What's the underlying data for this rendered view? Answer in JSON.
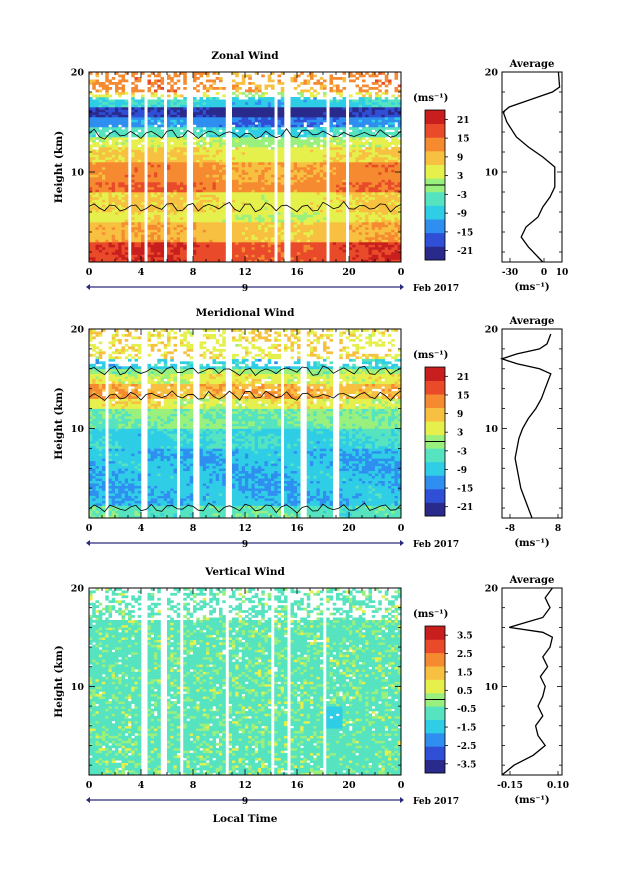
{
  "figure": {
    "xlabel": "Local Time",
    "date_label": "Feb 2017",
    "day_label": "9",
    "colors": {
      "background": "#ffffff",
      "axis": "#000000",
      "scale": [
        "#2a2a8c",
        "#2f4fd6",
        "#2f8ff0",
        "#2fcde6",
        "#56e3c0",
        "#9af07c",
        "#e6f04c",
        "#f7c040",
        "#f58a30",
        "#e84a2a",
        "#c81e1e"
      ]
    }
  },
  "chart_data": [
    {
      "type": "heatmap",
      "id": "zonal",
      "title": "Zonal Wind",
      "ylabel": "Height (km)",
      "unit": "(ms⁻¹)",
      "xlim": [
        0,
        24
      ],
      "ylim": [
        1,
        20
      ],
      "x_ticks": [
        "0",
        "4",
        "8",
        "12",
        "16",
        "20",
        "0"
      ],
      "y_ticks": [
        "10",
        "20"
      ],
      "colorbar": {
        "min": -24,
        "max": 24,
        "ticks": [
          "21",
          "15",
          "9",
          "3",
          "-3",
          "-9",
          "-15",
          "-21"
        ]
      },
      "profile": {
        "title": "Average",
        "xlabel": "(ms⁻¹)",
        "xlim": [
          -13,
          12
        ],
        "x_ticks": [
          "-30",
          "0",
          "10"
        ],
        "y_ticks": [
          "10",
          "20"
        ],
        "points": [
          [
            4,
            1
          ],
          [
            2,
            1.5
          ],
          [
            -2,
            2.5
          ],
          [
            -5,
            3.5
          ],
          [
            -3,
            4.5
          ],
          [
            2,
            5.5
          ],
          [
            4,
            6.5
          ],
          [
            7,
            7.5
          ],
          [
            9,
            8.5
          ],
          [
            9,
            9.5
          ],
          [
            9,
            10.5
          ],
          [
            4,
            11.5
          ],
          [
            -2,
            12.5
          ],
          [
            -7,
            13.5
          ],
          [
            -11,
            15
          ],
          [
            -12.5,
            16
          ],
          [
            -10,
            16.5
          ],
          [
            -4,
            17
          ],
          [
            2,
            17.5
          ],
          [
            8,
            18
          ],
          [
            11,
            18.5
          ],
          [
            10.5,
            20
          ]
        ]
      }
    },
    {
      "type": "heatmap",
      "id": "meridional",
      "title": "Meridional Wind",
      "ylabel": "Height (km)",
      "unit": "(ms⁻¹)",
      "xlim": [
        0,
        24
      ],
      "ylim": [
        1,
        20
      ],
      "x_ticks": [
        "0",
        "4",
        "8",
        "12",
        "16",
        "20",
        "0"
      ],
      "y_ticks": [
        "10",
        "20"
      ],
      "colorbar": {
        "min": -24,
        "max": 24,
        "ticks": [
          "21",
          "15",
          "9",
          "3",
          "-3",
          "-9",
          "-15",
          "-21"
        ]
      },
      "profile": {
        "title": "Average",
        "xlabel": "(ms⁻¹)",
        "xlim": [
          -8,
          8
        ],
        "x_ticks": [
          "-8",
          "8"
        ],
        "y_ticks": [
          "10",
          "20"
        ],
        "points": [
          [
            0,
            1
          ],
          [
            -1,
            2
          ],
          [
            -2,
            3
          ],
          [
            -3,
            4
          ],
          [
            -3.5,
            5
          ],
          [
            -4,
            6
          ],
          [
            -4.5,
            7
          ],
          [
            -4,
            8
          ],
          [
            -3.5,
            9
          ],
          [
            -2.5,
            10
          ],
          [
            -1,
            11
          ],
          [
            1,
            12
          ],
          [
            2.5,
            13
          ],
          [
            3.5,
            14
          ],
          [
            4.5,
            15
          ],
          [
            5,
            15.5
          ],
          [
            2,
            16
          ],
          [
            -4,
            16.5
          ],
          [
            -8,
            17
          ],
          [
            -4,
            17.5
          ],
          [
            2,
            18
          ],
          [
            4,
            18.5
          ],
          [
            5,
            19.5
          ]
        ]
      }
    },
    {
      "type": "heatmap",
      "id": "vertical",
      "title": "Vertical Wind",
      "ylabel": "Height (km)",
      "unit": "(ms⁻¹)",
      "xlim": [
        0,
        24
      ],
      "ylim": [
        1,
        20
      ],
      "x_ticks": [
        "0",
        "4",
        "8",
        "12",
        "16",
        "20",
        "0"
      ],
      "y_ticks": [
        "10",
        "20"
      ],
      "colorbar": {
        "min": -4,
        "max": 4,
        "ticks": [
          "3.5",
          "2.5",
          "1.5",
          "0.5",
          "-0.5",
          "-1.5",
          "-2.5",
          "-3.5"
        ]
      },
      "profile": {
        "title": "Average",
        "xlabel": "(ms⁻¹)",
        "xlim": [
          -0.15,
          0.1
        ],
        "x_ticks": [
          "-0.15",
          "0.10"
        ],
        "y_ticks": [
          "10",
          "20"
        ],
        "points": [
          [
            -0.15,
            1
          ],
          [
            -0.1,
            2
          ],
          [
            -0.02,
            3
          ],
          [
            0.03,
            4
          ],
          [
            0,
            5
          ],
          [
            -0.01,
            6
          ],
          [
            0.02,
            7
          ],
          [
            0,
            8
          ],
          [
            0.02,
            9
          ],
          [
            0.03,
            10
          ],
          [
            0.01,
            11
          ],
          [
            0.04,
            12
          ],
          [
            0.02,
            13
          ],
          [
            0.05,
            14
          ],
          [
            0.06,
            15
          ],
          [
            0.02,
            15.5
          ],
          [
            -0.12,
            16
          ],
          [
            -0.05,
            16.5
          ],
          [
            0.02,
            17
          ],
          [
            0.05,
            18
          ],
          [
            0.03,
            19
          ],
          [
            0.06,
            20
          ]
        ]
      }
    }
  ]
}
